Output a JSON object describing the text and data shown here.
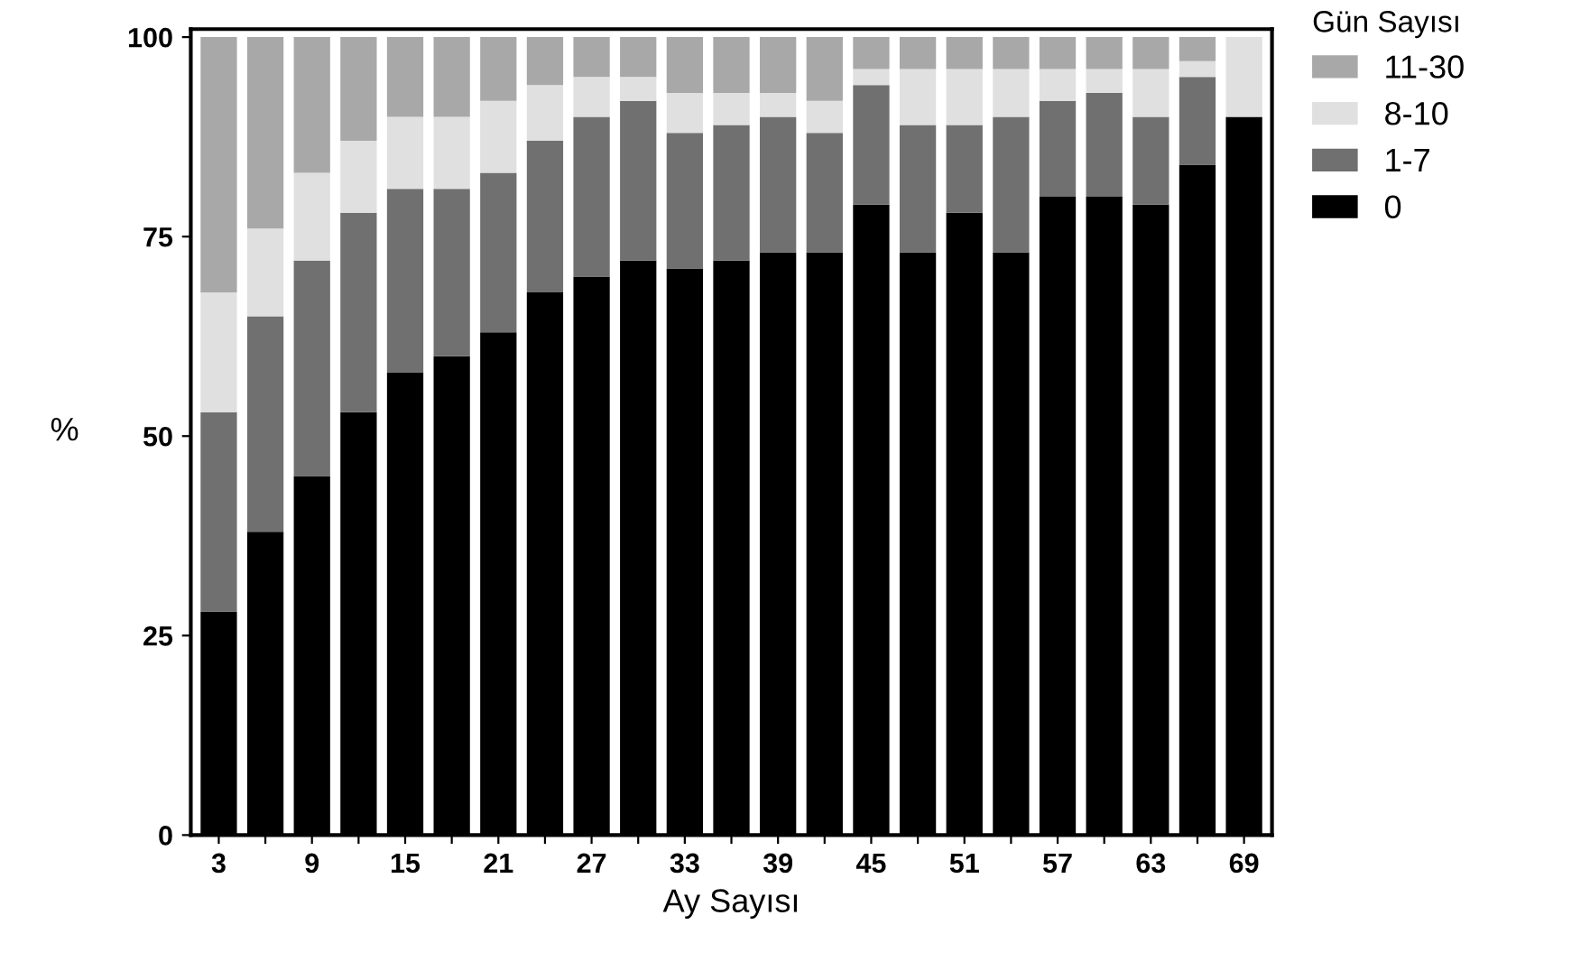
{
  "chart_data": {
    "type": "bar",
    "stacked": true,
    "xlabel": "Ay Sayısı",
    "ylabel": "%",
    "legend_title": "Gün Sayısı",
    "legend": "top right",
    "categories": [
      "3",
      null,
      "9",
      null,
      "15",
      null,
      "21",
      null,
      "27",
      null,
      "33",
      null,
      "39",
      null,
      "45",
      null,
      "51",
      null,
      "57",
      null,
      "63",
      null,
      "69"
    ],
    "ylim": [
      0,
      101
    ],
    "yticks": [
      0,
      25,
      50,
      75,
      100
    ],
    "grid": false,
    "series": [
      {
        "name": "0",
        "color": "#000000",
        "values": [
          28,
          38,
          45,
          53,
          58,
          60,
          63,
          68,
          70,
          72,
          71,
          72,
          73,
          73,
          79,
          73,
          78,
          73,
          80,
          80,
          79,
          84,
          90
        ]
      },
      {
        "name": "1-7",
        "color": "#707070",
        "values": [
          25,
          27,
          27,
          25,
          23,
          21,
          20,
          19,
          20,
          20,
          17,
          17,
          17,
          15,
          15,
          16,
          11,
          17,
          12,
          13,
          11,
          11,
          0
        ]
      },
      {
        "name": "8-10",
        "color": "#e0e0e0",
        "values": [
          15,
          11,
          11,
          9,
          9,
          9,
          9,
          7,
          5,
          3,
          5,
          4,
          3,
          4,
          2,
          7,
          7,
          6,
          4,
          3,
          6,
          2,
          10
        ]
      },
      {
        "name": "11-30",
        "color": "#a8a8a8",
        "values": [
          32,
          24,
          17,
          13,
          10,
          10,
          8,
          6,
          5,
          5,
          7,
          7,
          7,
          8,
          4,
          4,
          4,
          4,
          4,
          4,
          4,
          3,
          0
        ]
      }
    ]
  }
}
